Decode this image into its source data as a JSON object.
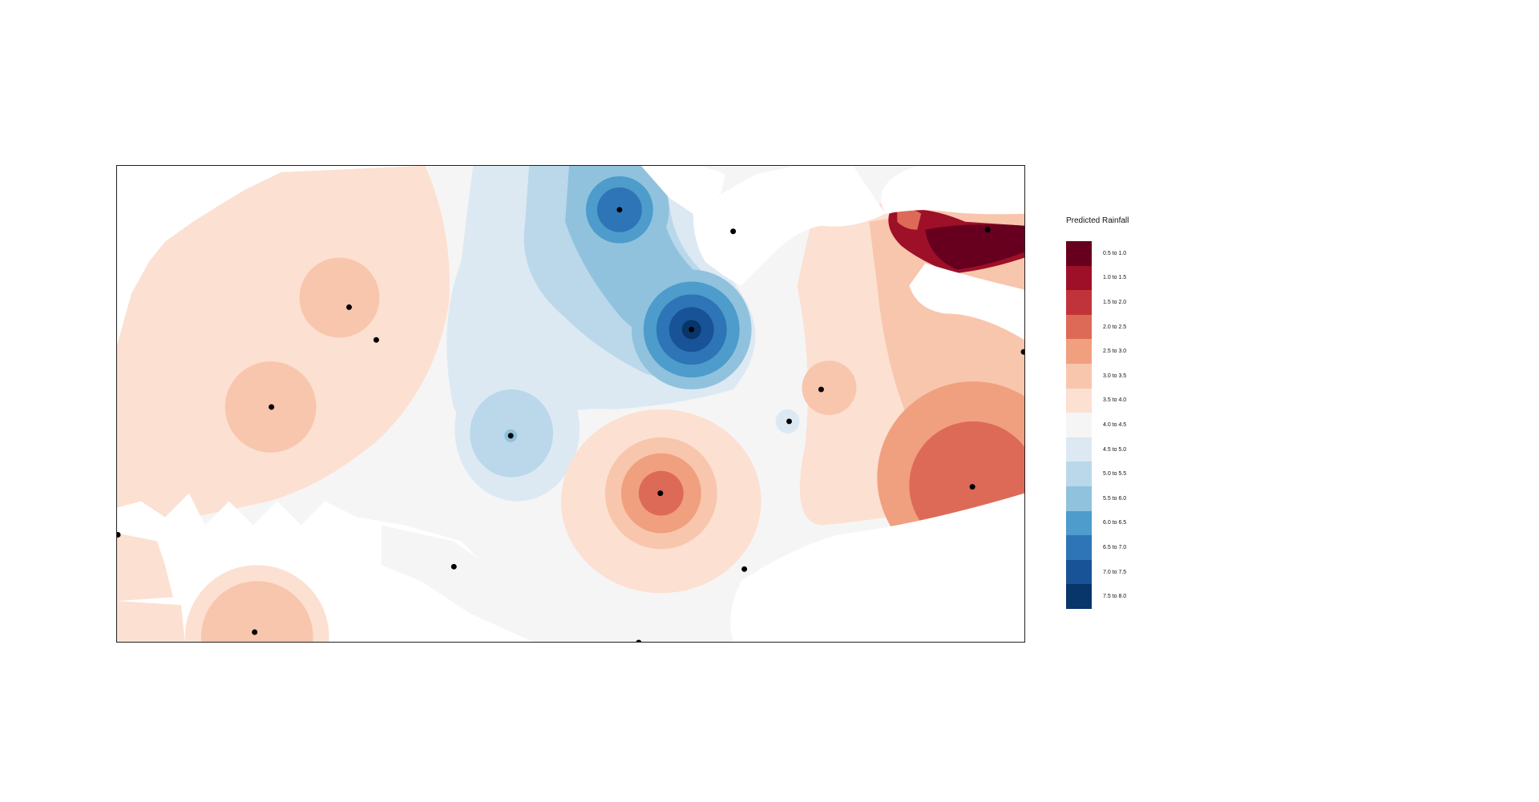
{
  "legend": {
    "title": "Predicted Rainfall",
    "classes": [
      {
        "label": "0.5 to 1.0",
        "color": "#67001f"
      },
      {
        "label": "1.0 to 1.5",
        "color": "#9e0f28"
      },
      {
        "label": "1.5 to 2.0",
        "color": "#c1333a"
      },
      {
        "label": "2.0 to 2.5",
        "color": "#dd6a57"
      },
      {
        "label": "2.5 to 3.0",
        "color": "#f0a07f"
      },
      {
        "label": "3.0 to 3.5",
        "color": "#f8c6ac"
      },
      {
        "label": "3.5 to 4.0",
        "color": "#fce0d2"
      },
      {
        "label": "4.0 to 4.5",
        "color": "#f5f5f5"
      },
      {
        "label": "4.5 to 5.0",
        "color": "#dce9f3"
      },
      {
        "label": "5.0 to 5.5",
        "color": "#bad8ea"
      },
      {
        "label": "5.5 to 6.0",
        "color": "#90c2de"
      },
      {
        "label": "6.0 to 6.5",
        "color": "#4d9ccb"
      },
      {
        "label": "6.5 to 7.0",
        "color": "#2d75b6"
      },
      {
        "label": "7.0 to 7.5",
        "color": "#185297"
      },
      {
        "label": "7.5 to 8.0",
        "color": "#08356a"
      }
    ]
  }
}
